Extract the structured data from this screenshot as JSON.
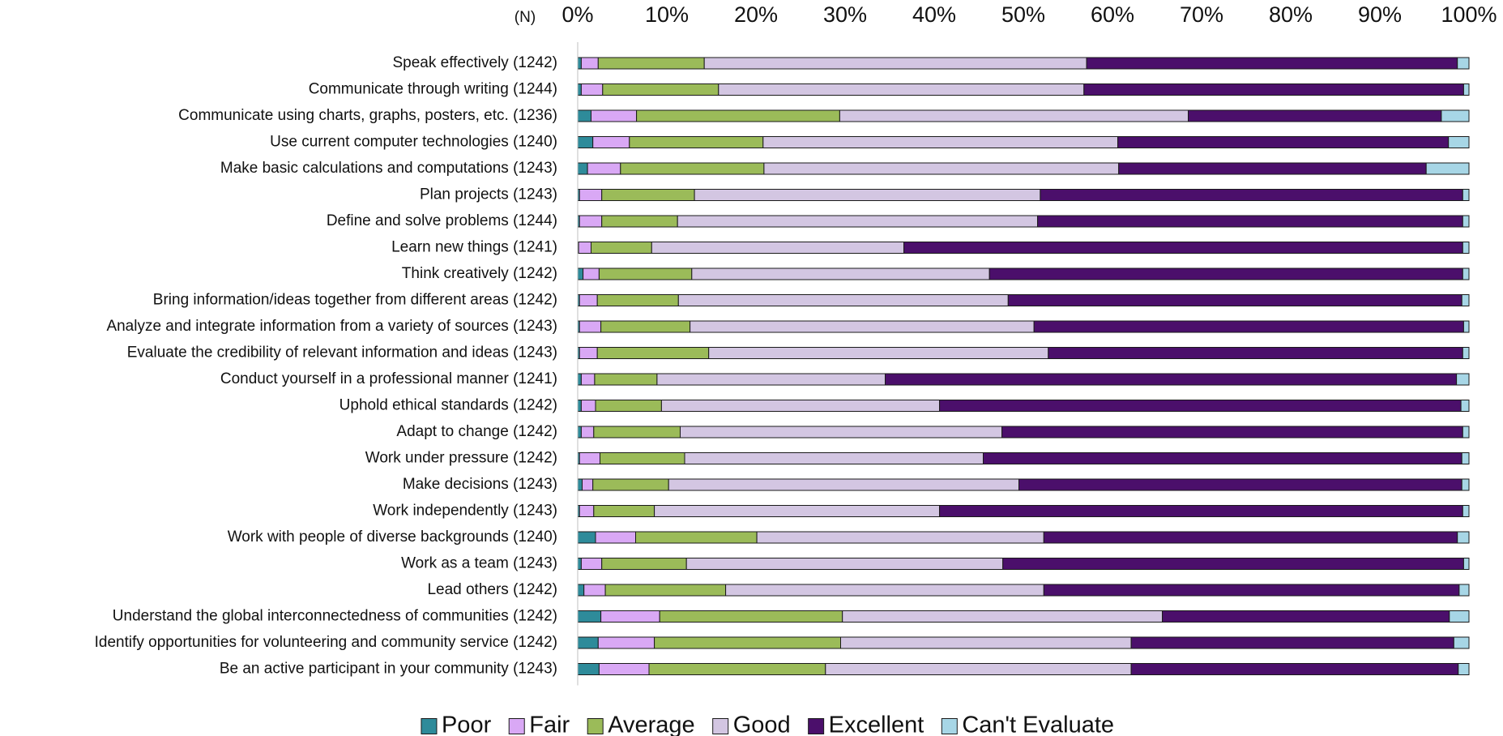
{
  "colors": {
    "Poor": "#2e8b9a",
    "Fair": "#d9a8f5",
    "Average": "#9bbb59",
    "Good": "#d3c6e2",
    "Excellent": "#4b0f6b",
    "Can't Evaluate": "#a7d6e6"
  },
  "chart_data": {
    "type": "bar",
    "orientation": "horizontal",
    "stacked": true,
    "percent": true,
    "n_header": "(N)",
    "xlim": [
      0,
      100
    ],
    "xticks": [
      "0%",
      "10%",
      "20%",
      "30%",
      "40%",
      "50%",
      "60%",
      "70%",
      "80%",
      "90%",
      "100%"
    ],
    "grid": false,
    "legend_position": "bottom",
    "categories": [
      "Speak effectively (1242)",
      "Communicate through writing (1244)",
      "Communicate using charts, graphs, posters, etc. (1236)",
      "Use current computer technologies (1240)",
      "Make basic calculations and computations (1243)",
      "Plan projects (1243)",
      "Define and solve problems (1244)",
      "Learn new things (1241)",
      "Think creatively (1242)",
      "Bring information/ideas together from different areas (1242)",
      "Analyze and integrate information from a variety of sources (1243)",
      "Evaluate the credibility of relevant information and ideas (1243)",
      "Conduct yourself in a professional manner (1241)",
      "Uphold ethical standards (1242)",
      "Adapt to change (1242)",
      "Work under pressure (1242)",
      "Make decisions (1243)",
      "Work independently (1243)",
      "Work with people of diverse backgrounds (1240)",
      "Work as a team (1243)",
      "Lead others (1242)",
      "Understand the global interconnectedness of communities (1242)",
      "Identify opportunities for volunteering and community service (1242)",
      "Be an active participant in your community (1243)"
    ],
    "series": [
      {
        "name": "Poor",
        "values": [
          0.4,
          0.4,
          1.5,
          1.7,
          1.1,
          0.2,
          0.2,
          0.1,
          0.6,
          0.2,
          0.2,
          0.2,
          0.4,
          0.4,
          0.4,
          0.2,
          0.5,
          0.2,
          2.0,
          0.4,
          0.7,
          2.6,
          2.3,
          2.4
        ]
      },
      {
        "name": "Fair",
        "values": [
          1.9,
          2.4,
          5.1,
          4.1,
          3.7,
          2.5,
          2.5,
          1.4,
          1.8,
          2.0,
          2.4,
          2.0,
          1.5,
          1.6,
          1.4,
          2.3,
          1.2,
          1.6,
          4.5,
          2.3,
          2.4,
          6.6,
          6.3,
          5.6
        ]
      },
      {
        "name": "Average",
        "values": [
          11.9,
          13.0,
          22.8,
          15.0,
          16.1,
          10.4,
          8.5,
          6.8,
          10.4,
          9.1,
          10.0,
          12.5,
          7.0,
          7.4,
          9.7,
          9.5,
          8.5,
          6.8,
          13.6,
          9.5,
          13.5,
          20.5,
          20.9,
          19.8
        ]
      },
      {
        "name": "Good",
        "values": [
          42.9,
          41.0,
          39.1,
          39.8,
          39.8,
          38.8,
          40.4,
          28.3,
          33.4,
          37.0,
          38.6,
          38.1,
          25.6,
          31.2,
          36.1,
          33.5,
          39.3,
          32.0,
          32.2,
          35.5,
          35.7,
          35.9,
          32.6,
          34.3
        ]
      },
      {
        "name": "Excellent",
        "values": [
          41.6,
          42.6,
          28.4,
          37.1,
          34.5,
          47.4,
          47.7,
          62.7,
          53.1,
          50.9,
          48.2,
          46.5,
          64.1,
          58.5,
          51.7,
          53.7,
          49.7,
          58.7,
          46.4,
          51.7,
          46.6,
          32.2,
          36.2,
          36.7
        ]
      },
      {
        "name": "Can't Evaluate",
        "values": [
          1.3,
          0.6,
          3.1,
          2.3,
          4.8,
          0.7,
          0.7,
          0.7,
          0.7,
          0.8,
          0.6,
          0.7,
          1.4,
          0.9,
          0.7,
          0.8,
          0.8,
          0.7,
          1.3,
          0.6,
          1.1,
          2.2,
          1.7,
          1.2
        ]
      }
    ]
  }
}
